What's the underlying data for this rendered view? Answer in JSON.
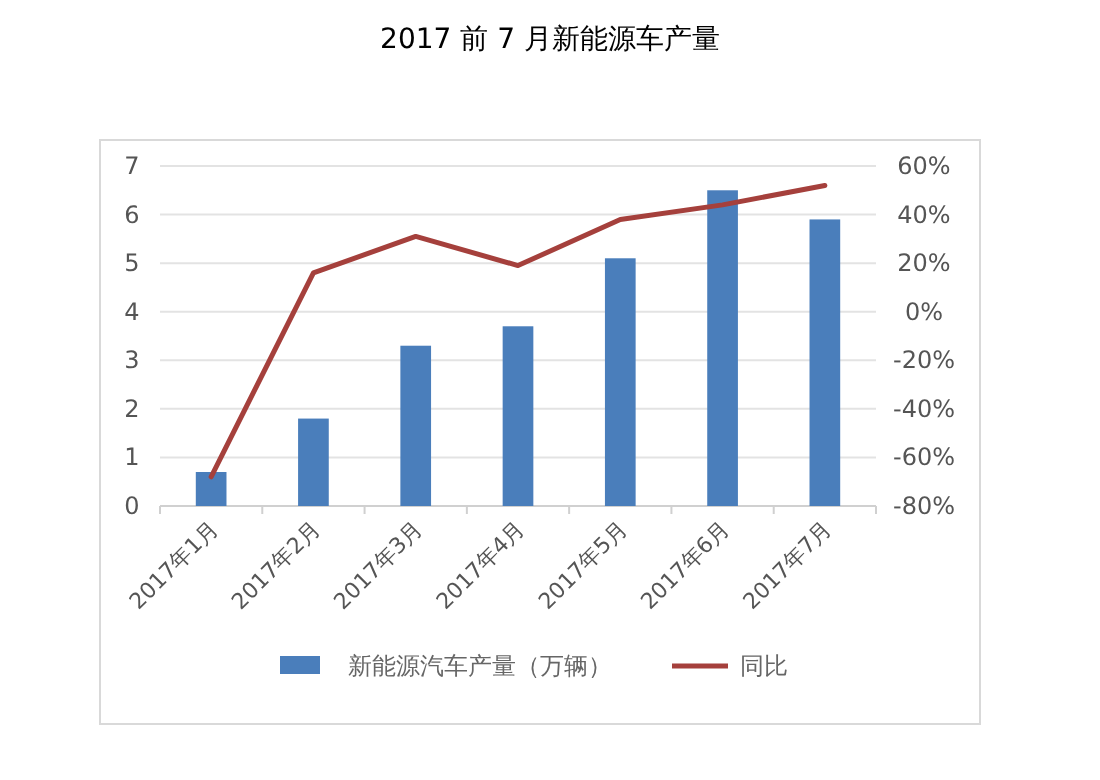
{
  "chart_data": {
    "type": "bar",
    "title": "2017  前 7 月新能源车产量",
    "categories": [
      "2017年1月",
      "2017年2月",
      "2017年3月",
      "2017年4月",
      "2017年5月",
      "2017年6月",
      "2017年7月"
    ],
    "series": [
      {
        "name": "新能源汽车产量（万辆）",
        "color": "#4a7ebb",
        "values": [
          0.7,
          1.8,
          3.3,
          3.7,
          5.1,
          6.5,
          5.9
        ]
      },
      {
        "name": "同比",
        "type": "line",
        "axis": "y2",
        "color": "#a5403c",
        "values": [
          -68,
          16,
          31,
          19,
          38,
          44,
          52
        ]
      }
    ],
    "ylim": [
      0,
      7
    ],
    "yticks": [
      0,
      1,
      2,
      3,
      4,
      5,
      6,
      7
    ],
    "y2lim": [
      -80,
      60
    ],
    "y2ticks": [
      {
        "value": -80,
        "label": "-80%"
      },
      {
        "value": -60,
        "label": "-60%"
      },
      {
        "value": -40,
        "label": "-40%"
      },
      {
        "value": -20,
        "label": "-20%"
      },
      {
        "value": 0,
        "label": "0%"
      },
      {
        "value": 20,
        "label": "20%"
      },
      {
        "value": 40,
        "label": "40%"
      },
      {
        "value": 60,
        "label": "60%"
      }
    ],
    "grid": "y",
    "legend": "bottom"
  }
}
